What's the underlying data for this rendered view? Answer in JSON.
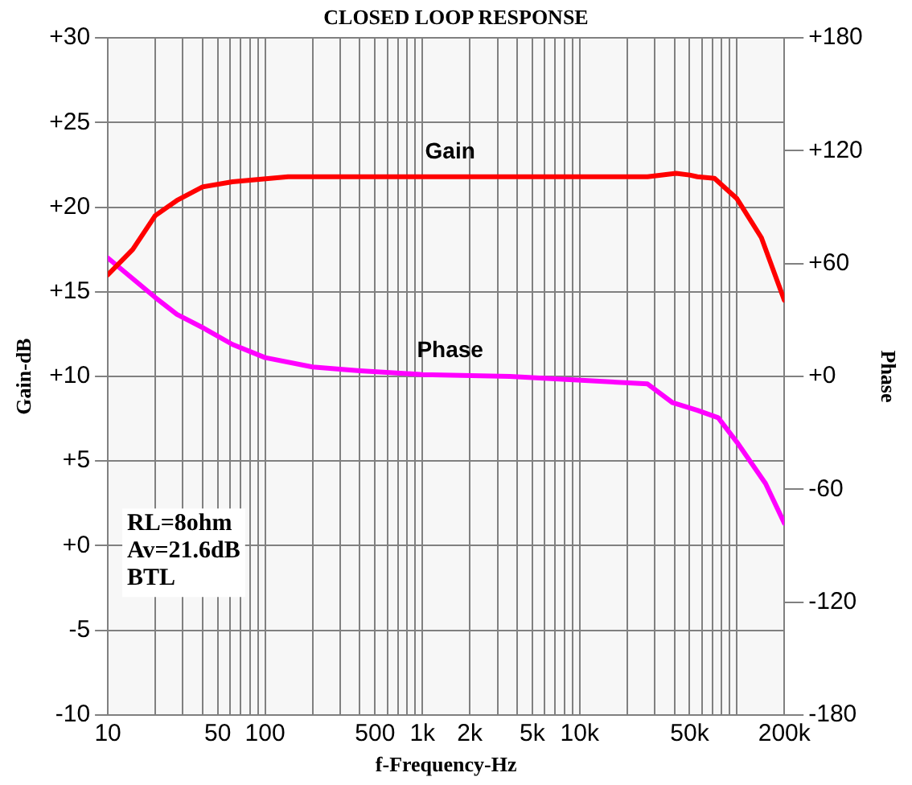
{
  "chart_data": {
    "type": "line",
    "title": "CLOSED LOOP RESPONSE",
    "xlabel": "f-Frequency-Hz",
    "ylabel": "Gain-dB",
    "y2label": "Phase",
    "log": "x",
    "grid": true,
    "line_style": "solid",
    "marker": "none",
    "xlim": [
      10,
      200000
    ],
    "xticks": [
      {
        "value": 10,
        "label": "10"
      },
      {
        "value": 20,
        "label": null
      },
      {
        "value": 30,
        "label": null
      },
      {
        "value": 40,
        "label": null
      },
      {
        "value": 50,
        "label": "50"
      },
      {
        "value": 60,
        "label": null
      },
      {
        "value": 70,
        "label": null
      },
      {
        "value": 80,
        "label": null
      },
      {
        "value": 90,
        "label": null
      },
      {
        "value": 100,
        "label": "100"
      },
      {
        "value": 200,
        "label": null
      },
      {
        "value": 300,
        "label": null
      },
      {
        "value": 400,
        "label": null
      },
      {
        "value": 500,
        "label": "500"
      },
      {
        "value": 600,
        "label": null
      },
      {
        "value": 700,
        "label": null
      },
      {
        "value": 800,
        "label": null
      },
      {
        "value": 900,
        "label": null
      },
      {
        "value": 1000,
        "label": "1k"
      },
      {
        "value": 2000,
        "label": "2k"
      },
      {
        "value": 3000,
        "label": null
      },
      {
        "value": 4000,
        "label": null
      },
      {
        "value": 5000,
        "label": "5k"
      },
      {
        "value": 6000,
        "label": null
      },
      {
        "value": 7000,
        "label": null
      },
      {
        "value": 8000,
        "label": null
      },
      {
        "value": 9000,
        "label": null
      },
      {
        "value": 10000,
        "label": "10k"
      },
      {
        "value": 20000,
        "label": null
      },
      {
        "value": 30000,
        "label": null
      },
      {
        "value": 40000,
        "label": null
      },
      {
        "value": 50000,
        "label": "50k"
      },
      {
        "value": 60000,
        "label": null
      },
      {
        "value": 70000,
        "label": null
      },
      {
        "value": 80000,
        "label": null
      },
      {
        "value": 90000,
        "label": null
      },
      {
        "value": 100000,
        "label": null
      },
      {
        "value": 200000,
        "label": "200k"
      }
    ],
    "ylim": [
      -10,
      30
    ],
    "yticks": [
      {
        "value": -10,
        "label": "-10"
      },
      {
        "value": -5,
        "label": "-5"
      },
      {
        "value": 0,
        "label": "+0"
      },
      {
        "value": 5,
        "label": "+5"
      },
      {
        "value": 10,
        "label": "+10"
      },
      {
        "value": 15,
        "label": "+15"
      },
      {
        "value": 20,
        "label": "+20"
      },
      {
        "value": 25,
        "label": "+25"
      },
      {
        "value": 30,
        "label": "+30"
      }
    ],
    "y2lim": [
      -180,
      180
    ],
    "y2ticks": [
      {
        "value": -180,
        "label": "-180"
      },
      {
        "value": -120,
        "label": "-120"
      },
      {
        "value": -60,
        "label": "-60"
      },
      {
        "value": 0,
        "label": "+0"
      },
      {
        "value": 60,
        "label": "+60"
      },
      {
        "value": 120,
        "label": "+120"
      },
      {
        "value": 180,
        "label": "+180"
      }
    ],
    "series": [
      {
        "name": "Gain",
        "color": "#ff0000",
        "x": [
          10,
          14.4,
          20,
          27.5,
          40,
          62,
          140,
          1000,
          10000,
          27000,
          41000,
          50000,
          56000,
          72000,
          100000,
          143000,
          200000
        ],
        "values": [
          16.0,
          17.5,
          19.5,
          20.4,
          21.2,
          21.5,
          21.8,
          21.8,
          21.8,
          21.8,
          22.0,
          21.9,
          21.8,
          21.7,
          20.5,
          18.2,
          14.5
        ]
      },
      {
        "name": "Phase",
        "color": "#ff00ff",
        "axis": "y2",
        "x": [
          10,
          14.4,
          20,
          27.5,
          40,
          62,
          100,
          200,
          400,
          1000,
          3600,
          10200,
          27000,
          39000,
          56000,
          76000,
          100000,
          152000,
          200000
        ],
        "values": [
          63,
          52,
          42,
          33,
          26,
          17,
          10,
          5,
          3,
          1,
          0,
          -2,
          -4,
          -14,
          -18,
          -22,
          -35,
          -57,
          -78
        ]
      }
    ],
    "annotations": [
      "RL=8ohm",
      "Av=21.6dB",
      "BTL"
    ]
  }
}
